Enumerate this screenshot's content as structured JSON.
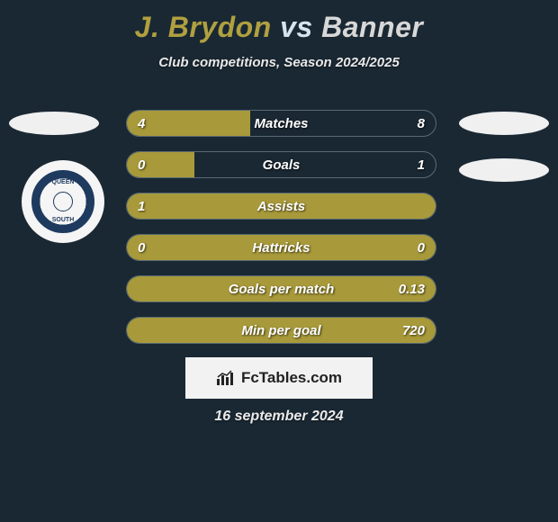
{
  "title": {
    "player1": "J. Brydon",
    "vs": "vs",
    "player2": "Banner"
  },
  "subtitle": "Club competitions, Season 2024/2025",
  "crest": {
    "line1": "QUEEN",
    "line2": "of the",
    "line3": "SOUTH"
  },
  "bars": {
    "fill_color": "#a89a3a",
    "border_color": "#5a6a75",
    "rows": [
      {
        "label": "Matches",
        "left": "4",
        "right": "8",
        "fill_pct": 40
      },
      {
        "label": "Goals",
        "left": "0",
        "right": "1",
        "fill_pct": 22
      },
      {
        "label": "Assists",
        "left": "1",
        "right": "",
        "fill_pct": 100
      },
      {
        "label": "Hattricks",
        "left": "0",
        "right": "0",
        "fill_pct": 100
      },
      {
        "label": "Goals per match",
        "left": "",
        "right": "0.13",
        "fill_pct": 100
      },
      {
        "label": "Min per goal",
        "left": "",
        "right": "720",
        "fill_pct": 100
      }
    ]
  },
  "logo": {
    "text": "FcTables.com"
  },
  "date": "16 september 2024",
  "colors": {
    "background": "#1a2833",
    "player1": "#b0a040",
    "player2": "#d8d8d8",
    "text": "#e8e8e8"
  }
}
